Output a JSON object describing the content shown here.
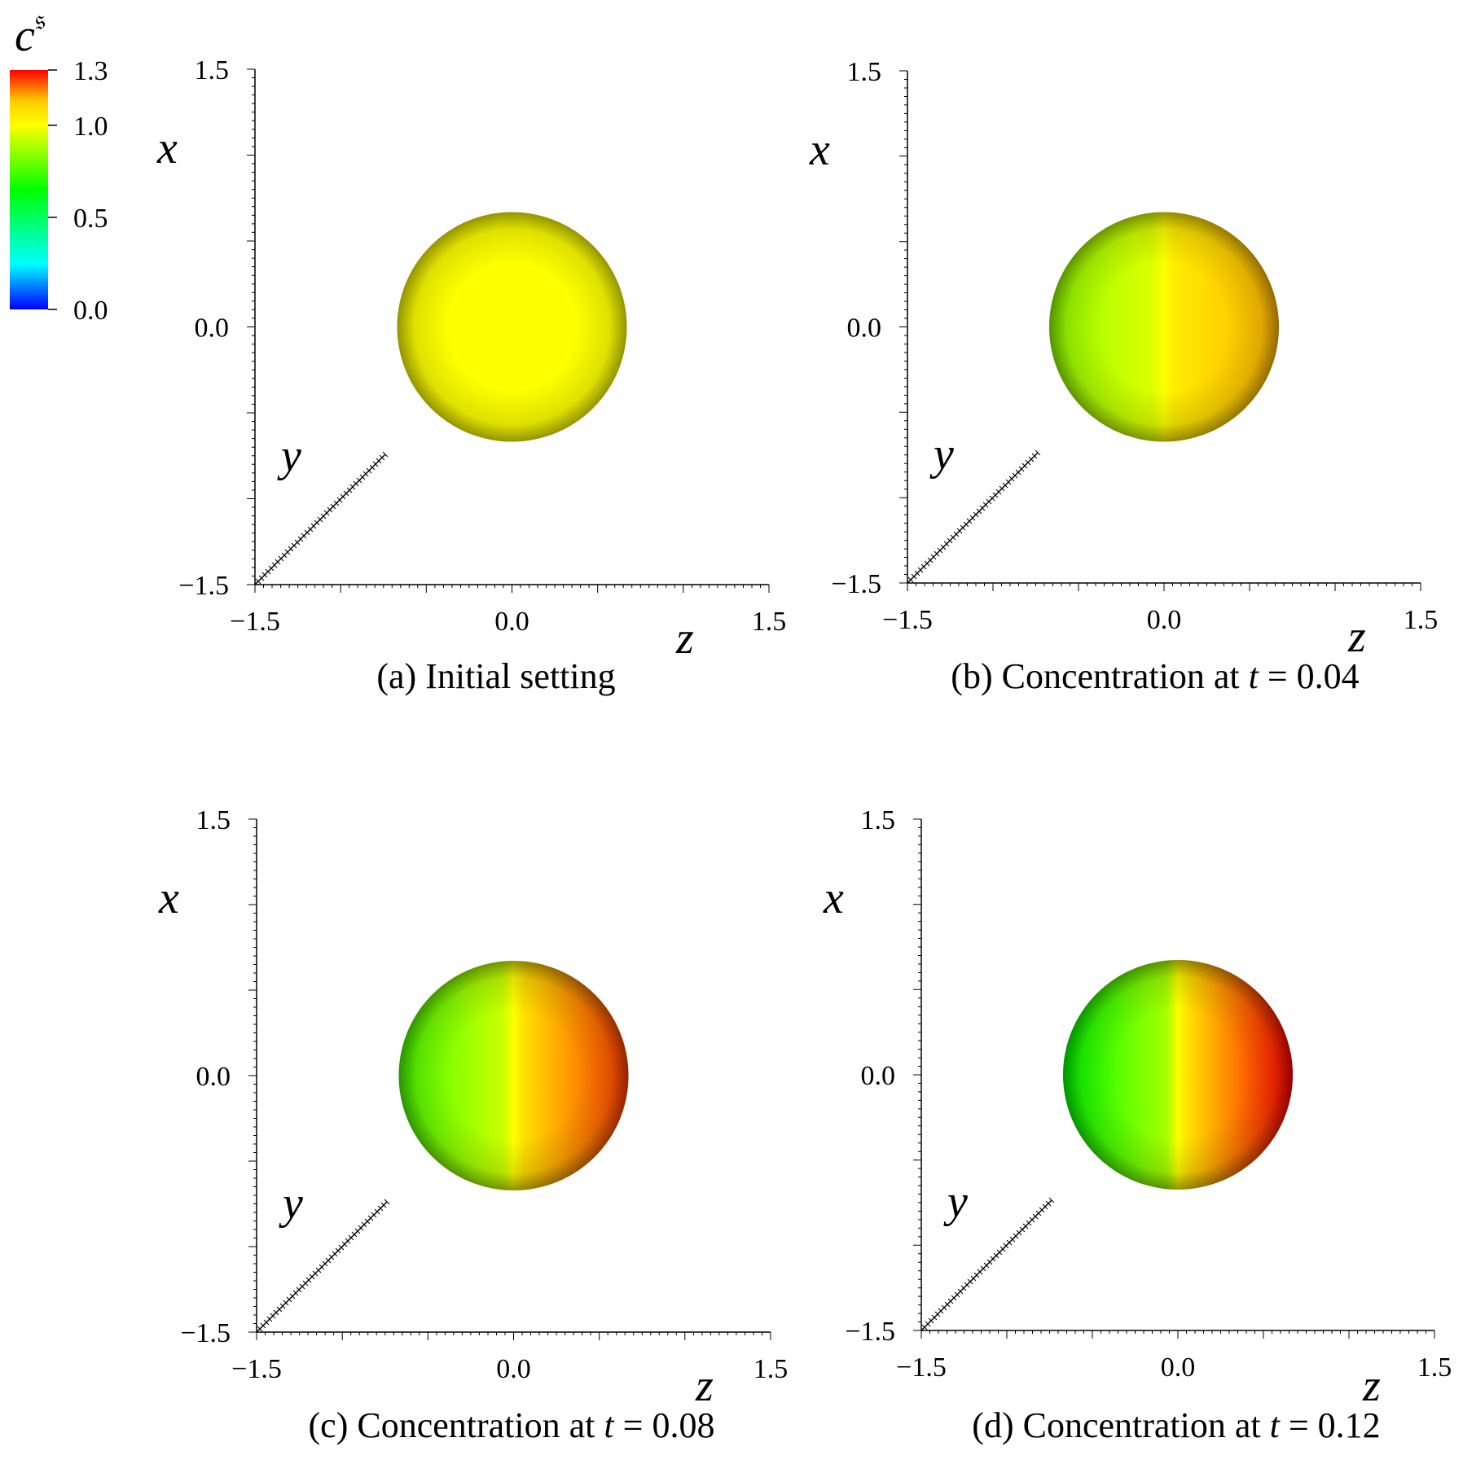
{
  "colorbar": {
    "symbol": "c",
    "superscript": "𝔰",
    "ticks": [
      "1.3",
      "1.0",
      "0.5",
      "0.0"
    ],
    "tick_values": [
      1.3,
      1.0,
      0.5,
      0.0
    ],
    "range": [
      0.0,
      1.3
    ],
    "colormap": [
      "#0000ff",
      "#00ffff",
      "#00ff00",
      "#ffff00",
      "#ff0000"
    ]
  },
  "panels": [
    {
      "caption": "(a) Initial setting",
      "x_label": "x",
      "y_label": "y",
      "z_label": "z",
      "x_ticks": [
        "1.5",
        "0.0",
        "−1.5"
      ],
      "z_ticks": [
        "−1.5",
        "0.0",
        "1.5"
      ],
      "concentration_left": 1.0,
      "concentration_right": 1.0
    },
    {
      "caption": "(b) Concentration at t = 0.04",
      "caption_prefix": "(b) Concentration at ",
      "caption_var": "t",
      "caption_suffix": " = 0.04",
      "x_label": "x",
      "y_label": "y",
      "z_label": "z",
      "x_ticks": [
        "1.5",
        "0.0",
        "−1.5"
      ],
      "z_ticks": [
        "−1.5",
        "0.0",
        "1.5"
      ],
      "concentration_left": 0.85,
      "concentration_right": 1.15
    },
    {
      "caption": "(c) Concentration at t = 0.08",
      "caption_prefix": "(c) Concentration at ",
      "caption_var": "t",
      "caption_suffix": " = 0.08",
      "x_label": "x",
      "y_label": "y",
      "z_label": "z",
      "x_ticks": [
        "1.5",
        "0.0",
        "−1.5"
      ],
      "z_ticks": [
        "−1.5",
        "0.0",
        "1.5"
      ],
      "concentration_left": 0.75,
      "concentration_right": 1.25
    },
    {
      "caption": "(d) Concentration at t = 0.12",
      "caption_prefix": "(d) Concentration at ",
      "caption_var": "t",
      "caption_suffix": " = 0.12",
      "x_label": "x",
      "y_label": "y",
      "z_label": "z",
      "x_ticks": [
        "1.5",
        "0.0",
        "−1.5"
      ],
      "z_ticks": [
        "−1.5",
        "0.0",
        "1.5"
      ],
      "concentration_left": 0.65,
      "concentration_right": 1.3
    }
  ]
}
